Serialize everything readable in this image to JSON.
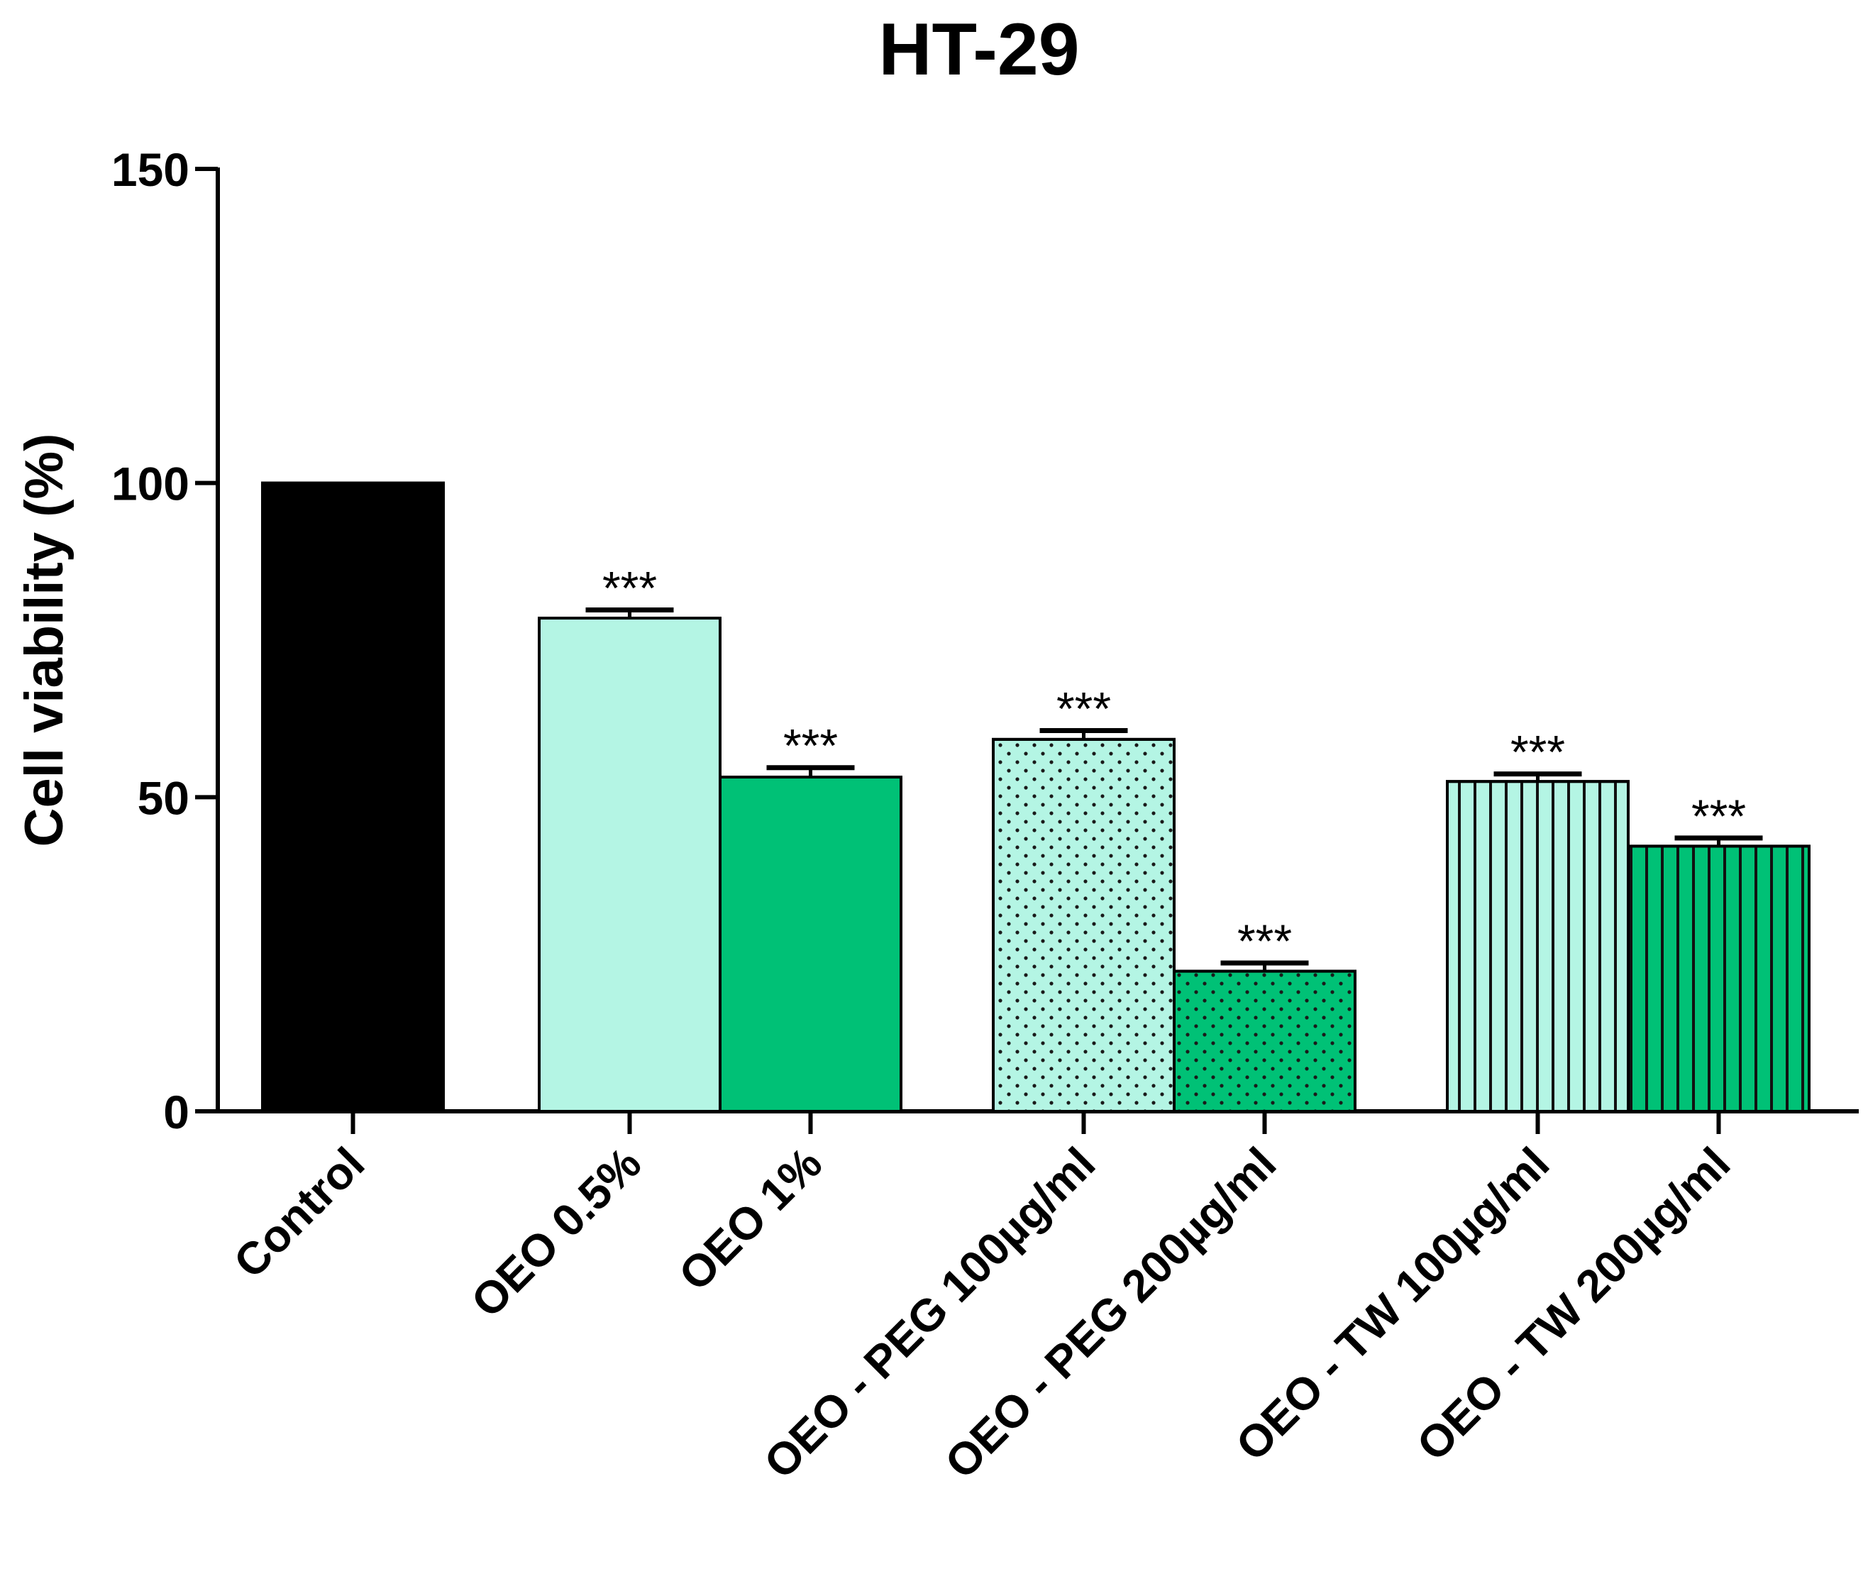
{
  "chart_data": {
    "type": "bar",
    "title": "HT-29",
    "xlabel": "",
    "ylabel": "Cell viability (%)",
    "ylim": [
      0,
      150
    ],
    "yticks": [
      "0",
      "50",
      "100",
      "150"
    ],
    "grid": false,
    "categories": [
      "Control",
      "OEO 0.5%",
      "OEO 1%",
      "OEO - PEG 100µg/ml",
      "OEO - PEG 200µg/ml",
      "OEO - TW 100µg/ml",
      "OEO - TW 200µg/ml"
    ],
    "values": [
      100,
      78.5,
      53.2,
      59.2,
      22.3,
      52.5,
      42.2
    ],
    "errors": [
      0,
      1.3,
      1.5,
      1.4,
      1.3,
      1.2,
      1.3
    ],
    "significance": [
      "",
      "***",
      "***",
      "***",
      "***",
      "***",
      "***"
    ],
    "colors": [
      "#000000",
      "#b4f5e4",
      "#00c176",
      "#b4f5e4",
      "#00c176",
      "#b4f5e4",
      "#00c176"
    ],
    "patterns": [
      "solid",
      "solid",
      "solid",
      "dots",
      "dots",
      "vlines",
      "vlines"
    ]
  }
}
